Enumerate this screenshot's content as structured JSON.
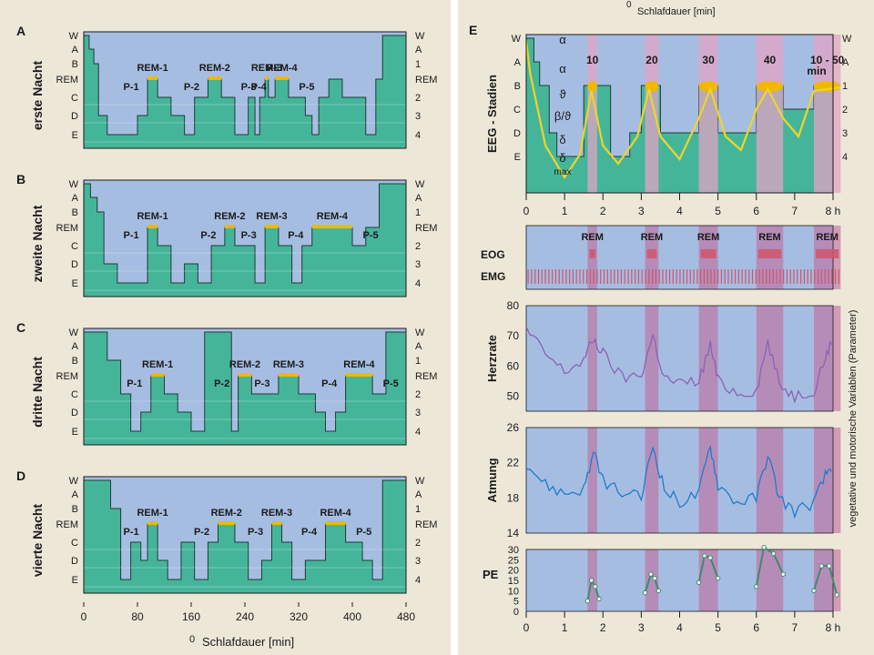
{
  "colors": {
    "page": "#ffffff",
    "panel_bg": "#ede7d8",
    "wake": "#a6bde2",
    "sleep": "#45b59a",
    "rem_bar": "#f1b800",
    "rem_band": "#e2a4c4",
    "rem_band_dark": "#c06a9c",
    "ann": "#2a2a2a",
    "herz": "#8a62b4",
    "atmung": "#1d7ccb",
    "pe": "#3f8a6e",
    "eeg_curve": "#eed52a",
    "ticks_red": "#d0556a"
  },
  "left": {
    "stage_labels": [
      "W",
      "A",
      "B",
      "REM",
      "C",
      "D",
      "E"
    ],
    "right_labels": [
      "W",
      "A",
      "1",
      "REM",
      "2",
      "3",
      "4"
    ],
    "x_ticks": [
      "0",
      "80",
      "160",
      "240",
      "320",
      "400",
      "480"
    ],
    "xlabel_zero": "0",
    "xlabel": "Schlafdauer [min]",
    "panels": [
      {
        "letter": "A",
        "title": "erste Nacht",
        "rem_labels": [
          "REM-1",
          "REM-2",
          "REM-3",
          "REM-4"
        ],
        "p_labels": [
          "P-1",
          "P-2",
          "P-3",
          "P-4",
          "P-5"
        ]
      },
      {
        "letter": "B",
        "title": "zweite Nacht",
        "rem_labels": [
          "REM-1",
          "REM-2",
          "REM-3",
          "REM-4"
        ],
        "p_labels": [
          "P-1",
          "P-2",
          "P-3",
          "P-4",
          "P-5"
        ]
      },
      {
        "letter": "C",
        "title": "dritte Nacht",
        "rem_labels": [
          "REM-1",
          "REM-2",
          "REM-3",
          "REM-4"
        ],
        "p_labels": [
          "P-1",
          "P-2",
          "P-3",
          "P-4",
          "P-5"
        ]
      },
      {
        "letter": "D",
        "title": "vierte Nacht",
        "rem_labels": [
          "REM-1",
          "REM-2",
          "REM-3",
          "REM-4"
        ],
        "p_labels": [
          "P-1",
          "P-2",
          "P-3",
          "P-4",
          "P-5"
        ]
      }
    ]
  },
  "right": {
    "letter": "E",
    "top_xlabel_zero": "0",
    "top_xlabel": "Schlafdauer [min]",
    "eeg_title": "EEG - Stadien",
    "eeg_stages": [
      "W",
      "A",
      "B",
      "C",
      "D",
      "E"
    ],
    "eeg_right": [
      "W",
      "A",
      "1",
      "2",
      "3",
      "4"
    ],
    "greek": [
      "α",
      "α",
      "ϑ",
      "β/ϑ",
      "δ",
      "δ"
    ],
    "greek_max": "max",
    "rem_durations": [
      "10",
      "20",
      "30",
      "40",
      "10 - 50"
    ],
    "rem_unit": "min",
    "hour_ticks": [
      "0",
      "1",
      "2",
      "3",
      "4",
      "5",
      "6",
      "7",
      "8 h"
    ],
    "rem_labels": [
      "REM",
      "REM",
      "REM",
      "REM",
      "REM"
    ],
    "eog": "EOG",
    "emg": "EMG",
    "herz_label": "Herzrate",
    "herz_ticks": [
      "80",
      "70",
      "60",
      "50"
    ],
    "atmung_label": "Atmung",
    "atmung_ticks": [
      "26",
      "22",
      "18",
      "14"
    ],
    "pe_label": "PE",
    "pe_ticks": [
      "30",
      "25",
      "20",
      "15",
      "10",
      "5",
      "0"
    ],
    "side_label": "vegetative und motorische Variablen (Parameter)"
  },
  "chart_data": [
    {
      "type": "line",
      "title": "erste Nacht",
      "xlabel": "Schlafdauer [min]",
      "xlim": [
        0,
        480
      ],
      "stages": [
        "W",
        "A",
        "B",
        "REM",
        "C",
        "D",
        "E"
      ],
      "x": [
        0,
        8,
        15,
        22,
        35,
        55,
        80,
        95,
        110,
        130,
        150,
        165,
        185,
        205,
        225,
        245,
        255,
        262,
        270,
        275,
        285,
        305,
        330,
        340,
        350,
        365,
        385,
        405,
        420,
        435,
        445,
        460,
        480
      ],
      "stage": [
        "W",
        "A",
        "B",
        "D",
        "E",
        "E",
        "D",
        "REM",
        "C",
        "D",
        "E",
        "C",
        "REM",
        "C",
        "E",
        "C",
        "E",
        "C",
        "REM",
        "C",
        "REM",
        "C",
        "D",
        "E",
        "C",
        "REM",
        "C",
        "C",
        "E",
        "REM",
        "W",
        "W",
        "W"
      ]
    },
    {
      "type": "line",
      "title": "zweite Nacht",
      "xlabel": "Schlafdauer [min]",
      "xlim": [
        0,
        480
      ],
      "stages": [
        "W",
        "A",
        "B",
        "REM",
        "C",
        "D",
        "E"
      ],
      "x": [
        0,
        10,
        20,
        30,
        50,
        75,
        95,
        110,
        130,
        150,
        170,
        190,
        210,
        225,
        255,
        270,
        290,
        310,
        325,
        340,
        360,
        400,
        420,
        440,
        460,
        480
      ],
      "stage": [
        "W",
        "A",
        "B",
        "D",
        "E",
        "E",
        "REM",
        "C",
        "E",
        "D",
        "E",
        "C",
        "REM",
        "C",
        "E",
        "REM",
        "C",
        "E",
        "C",
        "REM",
        "REM",
        "C",
        "REM",
        "W",
        "W",
        "W"
      ]
    },
    {
      "type": "line",
      "title": "dritte Nacht",
      "xlabel": "Schlafdauer [min]",
      "xlim": [
        0,
        480
      ],
      "stages": [
        "W",
        "A",
        "B",
        "REM",
        "C",
        "D",
        "E"
      ],
      "x": [
        0,
        35,
        55,
        70,
        85,
        100,
        120,
        140,
        160,
        180,
        190,
        220,
        230,
        250,
        270,
        290,
        320,
        345,
        360,
        375,
        390,
        410,
        430,
        450,
        480
      ],
      "stage": [
        "W",
        "B",
        "C",
        "E",
        "D",
        "REM",
        "C",
        "D",
        "E",
        "W",
        "W",
        "E",
        "REM",
        "C",
        "C",
        "REM",
        "C",
        "D",
        "E",
        "D",
        "REM",
        "REM",
        "C",
        "W",
        "W"
      ]
    },
    {
      "type": "line",
      "title": "vierte Nacht",
      "xlabel": "Schlafdauer [min]",
      "xlim": [
        0,
        480
      ],
      "stages": [
        "W",
        "A",
        "B",
        "REM",
        "C",
        "D",
        "E"
      ],
      "x": [
        0,
        15,
        40,
        55,
        70,
        85,
        95,
        110,
        125,
        145,
        165,
        185,
        200,
        225,
        245,
        265,
        280,
        295,
        310,
        330,
        360,
        390,
        415,
        430,
        445,
        460,
        480
      ],
      "stage": [
        "W",
        "W",
        "B",
        "E",
        "C",
        "D",
        "REM",
        "D",
        "E",
        "C",
        "E",
        "C",
        "REM",
        "C",
        "E",
        "D",
        "REM",
        "C",
        "E",
        "D",
        "REM",
        "C",
        "D",
        "E",
        "W",
        "W",
        "W"
      ]
    },
    {
      "type": "line",
      "title": "EEG - Stadien",
      "xlabel": "Schlafdauer [min]",
      "xlim": [
        0,
        8
      ],
      "rem_periods_h": [
        [
          1.6,
          1.85
        ],
        [
          3.1,
          3.45
        ],
        [
          4.5,
          5.0
        ],
        [
          6.0,
          6.7
        ],
        [
          7.5,
          8.2
        ]
      ],
      "rem_durations_min": [
        "10",
        "20",
        "30",
        "40",
        "10 - 50"
      ]
    },
    {
      "type": "line",
      "title": "Herzrate",
      "ylim": [
        45,
        80
      ],
      "x": [
        0,
        0.5,
        1,
        1.5,
        1.75,
        2,
        2.5,
        3,
        3.3,
        3.6,
        4,
        4.5,
        4.8,
        5,
        5.5,
        6,
        6.3,
        6.6,
        7,
        7.5,
        7.8,
        8
      ],
      "y": [
        72,
        64,
        58,
        62,
        69,
        64,
        56,
        57,
        70,
        56,
        54,
        55,
        67,
        55,
        51,
        52,
        68,
        54,
        50,
        52,
        63,
        69
      ]
    },
    {
      "type": "line",
      "title": "Atmung",
      "ylim": [
        14,
        26
      ],
      "x": [
        0,
        0.5,
        1,
        1.5,
        1.75,
        2,
        2.5,
        3,
        3.3,
        3.6,
        4,
        4.5,
        4.8,
        5,
        5.5,
        6,
        6.3,
        6.6,
        7,
        7.5,
        7.8,
        8
      ],
      "y": [
        22,
        19.5,
        18.5,
        19,
        23,
        20,
        18.5,
        18,
        24,
        19,
        17.5,
        18.5,
        24,
        19.5,
        17.5,
        18,
        23,
        18,
        16.5,
        17.5,
        20.5,
        22
      ]
    },
    {
      "type": "line",
      "title": "PE",
      "ylim": [
        0,
        30
      ],
      "x": [
        1.6,
        1.7,
        1.8,
        1.9,
        3.1,
        3.25,
        3.35,
        3.45,
        4.5,
        4.65,
        4.8,
        5.0,
        6.0,
        6.2,
        6.45,
        6.7,
        7.5,
        7.7,
        7.9,
        8.1
      ],
      "y": [
        5,
        15,
        12,
        6,
        9,
        18,
        16,
        10,
        14,
        27,
        26,
        16,
        12,
        31,
        28,
        18,
        10,
        22,
        22,
        8
      ]
    }
  ]
}
